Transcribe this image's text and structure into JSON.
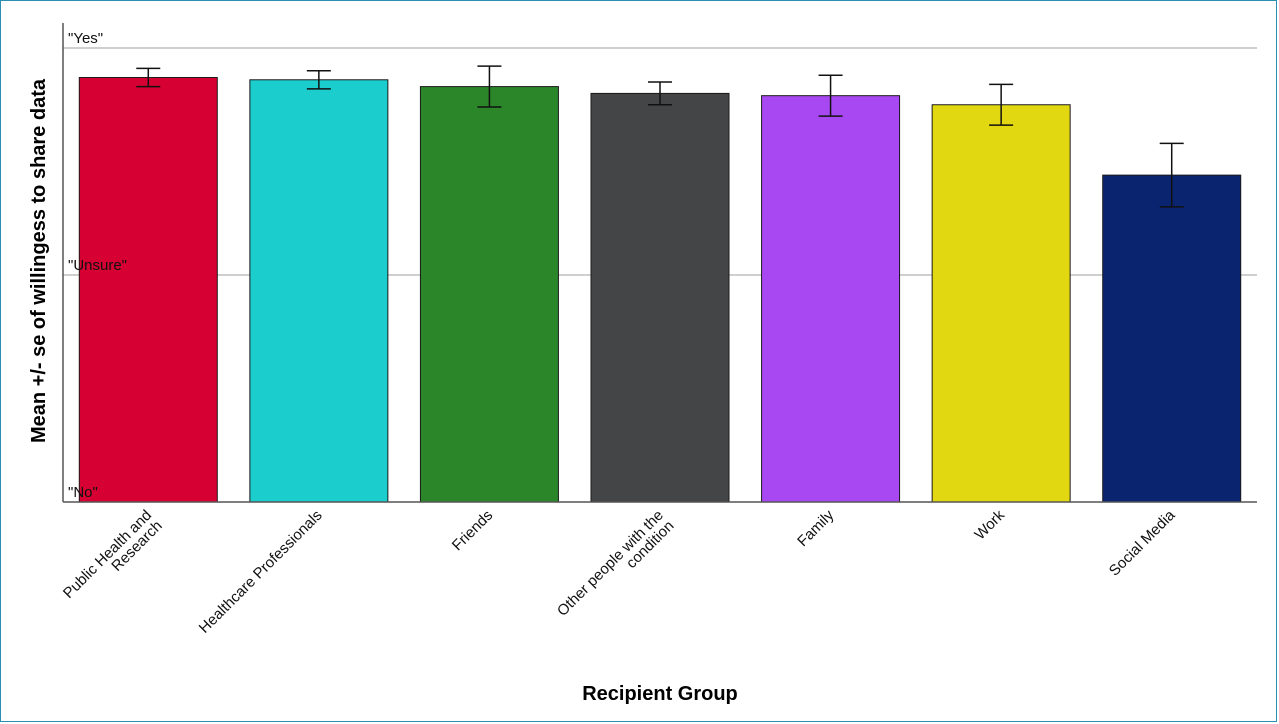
{
  "chart_data": {
    "type": "bar",
    "title": "",
    "xlabel": "Recipient Group",
    "ylabel": "Mean +/- se of willingess to share data",
    "y_ticks": [
      {
        "value": 0,
        "label": "\"No\""
      },
      {
        "value": 1,
        "label": "\"Unsure\""
      },
      {
        "value": 2,
        "label": "\"Yes\""
      }
    ],
    "ylim": [
      0,
      2.1
    ],
    "grid": true,
    "categories": [
      [
        "Public Health and",
        "Research"
      ],
      [
        "Healthcare Professionals"
      ],
      [
        "Friends"
      ],
      [
        "Other people with the",
        "condition"
      ],
      [
        "Family"
      ],
      [
        "Work"
      ],
      [
        "Social Media"
      ]
    ],
    "values": [
      1.87,
      1.86,
      1.83,
      1.8,
      1.79,
      1.75,
      1.44
    ],
    "errors": [
      0.04,
      0.04,
      0.09,
      0.05,
      0.09,
      0.09,
      0.14
    ],
    "colors": [
      "#d70032",
      "#1ccdcd",
      "#2a8629",
      "#444547",
      "#a848f2",
      "#e2d812",
      "#0b2470"
    ]
  }
}
